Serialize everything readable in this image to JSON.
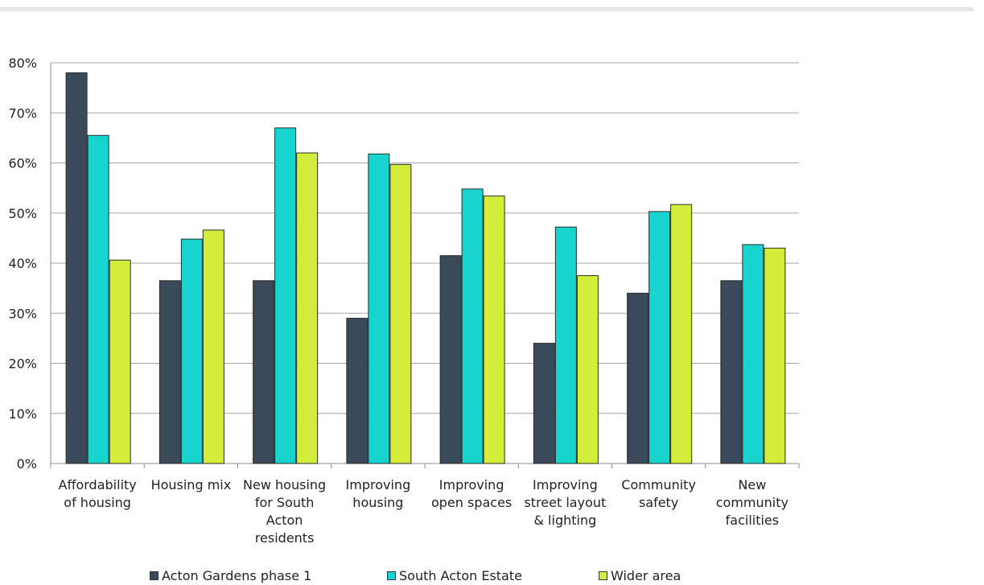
{
  "chart_data": {
    "type": "bar",
    "categories": [
      [
        "Affordability",
        "of housing"
      ],
      [
        "Housing mix"
      ],
      [
        "New housing",
        "for South",
        "Acton",
        "residents"
      ],
      [
        "Improving",
        "housing"
      ],
      [
        "Improving",
        "open spaces"
      ],
      [
        "Improving",
        "street layout",
        "& lighting"
      ],
      [
        "Community",
        "safety"
      ],
      [
        "New",
        "community",
        "facilities"
      ]
    ],
    "series": [
      {
        "name": "Acton Gardens phase 1",
        "color": "#3b4a5a",
        "values": [
          78,
          36.5,
          36.5,
          29,
          41.5,
          24,
          34,
          36.5
        ]
      },
      {
        "name": "South Acton Estate",
        "color": "#18d4cf",
        "values": [
          65.5,
          44.8,
          67,
          61.8,
          54.8,
          47.2,
          50.3,
          43.7
        ]
      },
      {
        "name": "Wider area",
        "color": "#d4ec3a",
        "values": [
          40.6,
          46.6,
          62,
          59.7,
          53.4,
          37.5,
          51.7,
          43
        ]
      }
    ],
    "yticks": [
      "0%",
      "10%",
      "20%",
      "30%",
      "40%",
      "50%",
      "60%",
      "70%",
      "80%"
    ],
    "ylim": [
      0,
      80
    ],
    "grid": true,
    "legend": "bottom"
  }
}
